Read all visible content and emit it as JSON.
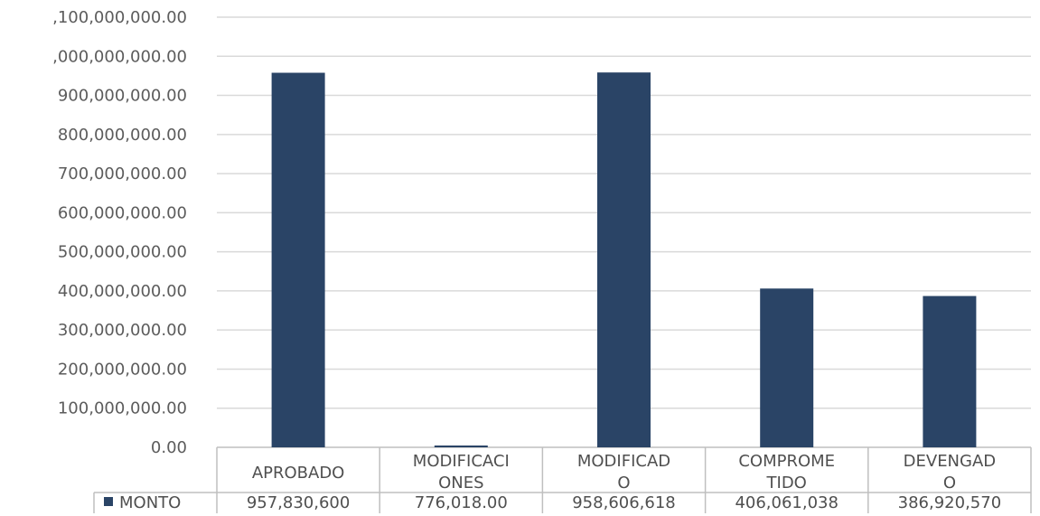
{
  "chart_data": {
    "type": "bar",
    "categories": [
      {
        "key": "APROBADO",
        "lines": [
          "APROBADO"
        ]
      },
      {
        "key": "MODIFICACIONES",
        "lines": [
          "MODIFICACI",
          "ONES"
        ]
      },
      {
        "key": "MODIFICADO",
        "lines": [
          "MODIFICAD",
          "O"
        ]
      },
      {
        "key": "COMPROMETIDO",
        "lines": [
          "COMPROME",
          "TIDO"
        ]
      },
      {
        "key": "DEVENGADO",
        "lines": [
          "DEVENGAD",
          "O"
        ]
      }
    ],
    "series": [
      {
        "name": "MONTO",
        "values": [
          957830600,
          776018,
          958606618,
          406061038,
          386920570
        ],
        "display_values": [
          "957,830,600",
          "776,018.00",
          "958,606,618",
          "406,061,038",
          "386,920,570"
        ]
      }
    ],
    "y_ticks": [
      ",100,000,000.00",
      ",000,000,000.00",
      "900,000,000.00",
      "800,000,000.00",
      "700,000,000.00",
      "600,000,000.00",
      "500,000,000.00",
      "400,000,000.00",
      "300,000,000.00",
      "200,000,000.00",
      "100,000,000.00",
      "0.00"
    ],
    "ylim": [
      0,
      1100000000
    ],
    "grid": true,
    "legend": "data-table",
    "colors": {
      "bar": "#2a4466",
      "grid": "#d9d9d9",
      "axis": "#bfbfbf",
      "text": "#4f4f4f"
    }
  }
}
